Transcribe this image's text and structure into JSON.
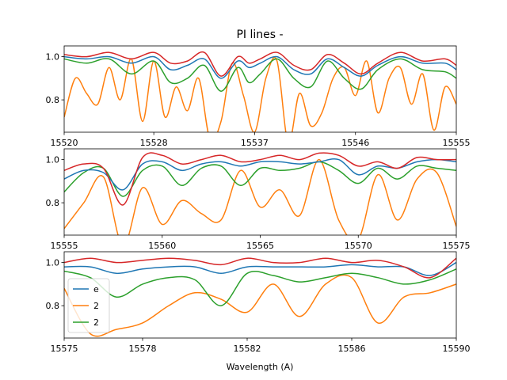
{
  "chart_data": {
    "type": "line",
    "title": "PI lines -",
    "xlabel": "Wavelength (A)",
    "ylabel": "",
    "colors": {
      "series_e": "#1f77b4",
      "series_2a": "#ff7f0e",
      "series_2b": "#2ca02c",
      "series_red": "#d62728"
    },
    "legend": {
      "placement": "lower-left of bottom panel",
      "entries": [
        "e",
        "2",
        "2"
      ]
    },
    "panels": [
      {
        "xlim": [
          15520,
          15555
        ],
        "ylim": [
          0.65,
          1.05
        ],
        "xticks": [
          15520,
          15528,
          15537,
          15546,
          15555
        ],
        "yticks": [
          0.8,
          1.0
        ],
        "series": [
          {
            "key": "series_red",
            "x": [
              15520,
              15522,
              15524,
              15526,
              15528,
              15529.5,
              15531,
              15532.5,
              15534,
              15535.5,
              15536.5,
              15537.5,
              15539,
              15540.5,
              15542,
              15543.5,
              15545,
              15546.5,
              15548,
              15550,
              15552,
              15554,
              15555
            ],
            "y": [
              1.01,
              1.0,
              1.02,
              0.99,
              1.02,
              0.97,
              0.98,
              1.02,
              0.91,
              1.0,
              0.97,
              0.99,
              1.02,
              0.96,
              0.94,
              1.01,
              0.97,
              0.92,
              0.97,
              1.02,
              0.98,
              0.99,
              0.96
            ]
          },
          {
            "key": "series_e",
            "x": [
              15520,
              15522,
              15524,
              15526,
              15528,
              15529.5,
              15531,
              15532.5,
              15534,
              15535.5,
              15536.5,
              15537.5,
              15539,
              15540.5,
              15542,
              15543.5,
              15545,
              15546.5,
              15548,
              15550,
              15552,
              15554,
              15555
            ],
            "y": [
              1.0,
              0.99,
              1.0,
              0.97,
              1.0,
              0.94,
              0.96,
              0.99,
              0.9,
              0.98,
              0.95,
              0.97,
              1.0,
              0.94,
              0.92,
              0.99,
              0.95,
              0.91,
              0.96,
              1.0,
              0.97,
              0.97,
              0.94
            ]
          },
          {
            "key": "series_2b",
            "x": [
              15520,
              15522,
              15524,
              15526,
              15528,
              15529.5,
              15531,
              15532.5,
              15534,
              15535.5,
              15536.5,
              15537.5,
              15539,
              15540.5,
              15542,
              15543.5,
              15545,
              15546.5,
              15548,
              15550,
              15552,
              15554,
              15555
            ],
            "y": [
              0.99,
              0.97,
              0.99,
              0.92,
              0.98,
              0.88,
              0.9,
              0.96,
              0.84,
              0.95,
              0.88,
              0.92,
              0.99,
              0.9,
              0.86,
              0.98,
              0.9,
              0.85,
              0.94,
              0.99,
              0.94,
              0.93,
              0.9
            ]
          },
          {
            "key": "series_2a",
            "x": [
              15520,
              15521,
              15522,
              15523,
              15524,
              15525,
              15526,
              15527,
              15528,
              15529,
              15530,
              15531,
              15532,
              15533,
              15534,
              15535,
              15536,
              15537,
              15538,
              15539,
              15540,
              15541,
              15542,
              15543,
              15544,
              15545,
              15546,
              15547,
              15548,
              15549,
              15550,
              15551,
              15552,
              15553,
              15554,
              15555
            ],
            "y": [
              0.72,
              0.9,
              0.83,
              0.78,
              0.95,
              0.8,
              0.99,
              0.7,
              0.98,
              0.72,
              0.86,
              0.75,
              0.9,
              0.62,
              0.7,
              0.97,
              0.82,
              0.65,
              0.9,
              0.98,
              0.6,
              0.83,
              0.68,
              0.74,
              0.9,
              0.95,
              0.82,
              0.98,
              0.74,
              0.9,
              0.95,
              0.78,
              0.92,
              0.66,
              0.86,
              0.78
            ]
          }
        ]
      },
      {
        "xlim": [
          15555,
          15575
        ],
        "ylim": [
          0.65,
          1.05
        ],
        "xticks": [
          15555,
          15560,
          15565,
          15570,
          15575
        ],
        "yticks": [
          0.8,
          1.0
        ],
        "series": [
          {
            "key": "series_red",
            "x": [
              15555,
              15556,
              15557,
              15558,
              15559,
              15560,
              15561,
              15562,
              15563,
              15564,
              15565,
              15566,
              15567,
              15568,
              15569,
              15570,
              15571,
              15572,
              15573,
              15574,
              15575
            ],
            "y": [
              0.95,
              0.98,
              0.96,
              0.79,
              1.01,
              1.02,
              0.98,
              1.0,
              1.02,
              0.99,
              1.0,
              1.02,
              1.0,
              1.03,
              1.02,
              0.97,
              0.99,
              0.96,
              1.01,
              1.0,
              1.0
            ]
          },
          {
            "key": "series_e",
            "x": [
              15555,
              15556,
              15557,
              15558,
              15559,
              15560,
              15561,
              15562,
              15563,
              15564,
              15565,
              15566,
              15567,
              15568,
              15569,
              15570,
              15571,
              15572,
              15573,
              15574,
              15575
            ],
            "y": [
              0.91,
              0.95,
              0.94,
              0.86,
              0.98,
              0.99,
              0.95,
              0.98,
              0.99,
              0.97,
              0.99,
              0.99,
              0.98,
              0.99,
              1.0,
              0.93,
              0.97,
              0.96,
              0.99,
              1.0,
              0.99
            ]
          },
          {
            "key": "series_2b",
            "x": [
              15555,
              15556,
              15557,
              15558,
              15559,
              15560,
              15561,
              15562,
              15563,
              15564,
              15565,
              15566,
              15567,
              15568,
              15569,
              15570,
              15571,
              15572,
              15573,
              15574,
              15575
            ],
            "y": [
              0.85,
              0.94,
              0.96,
              0.83,
              0.95,
              0.97,
              0.88,
              0.96,
              0.97,
              0.88,
              0.96,
              0.95,
              0.96,
              0.99,
              0.95,
              0.89,
              0.96,
              0.91,
              0.97,
              0.96,
              0.95
            ]
          },
          {
            "key": "series_2a",
            "x": [
              15555,
              15556,
              15557,
              15558,
              15559,
              15560,
              15561,
              15562,
              15563,
              15564,
              15565,
              15566,
              15567,
              15568,
              15569,
              15570,
              15571,
              15572,
              15573,
              15574,
              15575
            ],
            "y": [
              0.68,
              0.8,
              0.92,
              0.6,
              0.87,
              0.7,
              0.81,
              0.75,
              0.72,
              0.95,
              0.78,
              0.86,
              0.74,
              1.0,
              0.72,
              0.63,
              0.93,
              0.72,
              0.91,
              0.94,
              0.69
            ]
          }
        ]
      },
      {
        "xlim": [
          15575,
          15590
        ],
        "ylim": [
          0.65,
          1.05
        ],
        "xticks": [
          15575,
          15578,
          15582,
          15586,
          15590
        ],
        "yticks": [
          0.8,
          1.0
        ],
        "series": [
          {
            "key": "series_red",
            "x": [
              15575,
              15576,
              15577,
              15578,
              15579,
              15580,
              15581,
              15582,
              15583,
              15584,
              15585,
              15586,
              15587,
              15588,
              15589,
              15590
            ],
            "y": [
              1.0,
              1.02,
              1.0,
              1.01,
              1.02,
              1.01,
              0.99,
              1.02,
              1.0,
              1.0,
              1.02,
              1.0,
              1.01,
              0.98,
              0.93,
              1.02
            ]
          },
          {
            "key": "series_e",
            "x": [
              15575,
              15576,
              15577,
              15578,
              15579,
              15580,
              15581,
              15582,
              15583,
              15584,
              15585,
              15586,
              15587,
              15588,
              15589,
              15590
            ],
            "y": [
              0.98,
              0.98,
              0.95,
              0.97,
              0.98,
              0.98,
              0.95,
              0.98,
              0.98,
              0.98,
              0.98,
              0.99,
              0.98,
              0.98,
              0.94,
              1.0
            ]
          },
          {
            "key": "series_2b",
            "x": [
              15575,
              15576,
              15577,
              15578,
              15579,
              15580,
              15581,
              15582,
              15583,
              15584,
              15585,
              15586,
              15587,
              15588,
              15589,
              15590
            ],
            "y": [
              0.96,
              0.93,
              0.84,
              0.9,
              0.93,
              0.92,
              0.8,
              0.95,
              0.94,
              0.91,
              0.93,
              0.95,
              0.93,
              0.9,
              0.92,
              0.97
            ]
          },
          {
            "key": "series_2a",
            "x": [
              15575,
              15576,
              15577,
              15578,
              15579,
              15580,
              15581,
              15582,
              15583,
              15584,
              15585,
              15586,
              15587,
              15588,
              15589,
              15590
            ],
            "y": [
              0.88,
              0.67,
              0.69,
              0.72,
              0.8,
              0.86,
              0.83,
              0.77,
              0.9,
              0.75,
              0.9,
              0.93,
              0.72,
              0.84,
              0.86,
              0.9
            ]
          }
        ]
      }
    ]
  }
}
